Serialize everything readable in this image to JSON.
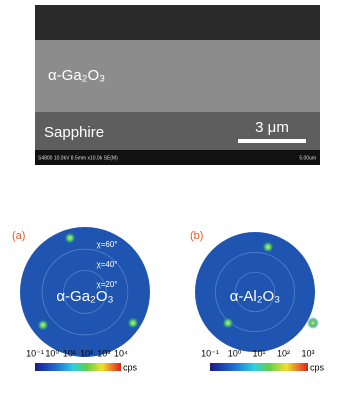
{
  "sem_image": {
    "film_label": "α-Ga₂O₃",
    "substrate_label": "Sapphire",
    "scale_bar": "3 μm",
    "info_bar": "S4800 10.0kV 8.5mm x10.0k SE(M)",
    "info_scale": "5.00um"
  },
  "pole_figures": [
    {
      "panel": "(a)",
      "material": "α-Ga₂O₃",
      "chi_labels": [
        "χ=60°",
        "χ=40°",
        "χ=20°"
      ],
      "colorbar_ticks": [
        "10⁻¹",
        "10⁰",
        "10¹",
        "10²",
        "10³",
        "10⁴"
      ],
      "colorbar_unit": "cps"
    },
    {
      "panel": "(b)",
      "material": "α-Al₂O₃",
      "colorbar_ticks": [
        "10⁻¹",
        "10⁰",
        "10¹",
        "10²",
        "10³"
      ],
      "colorbar_unit": "cps"
    }
  ]
}
